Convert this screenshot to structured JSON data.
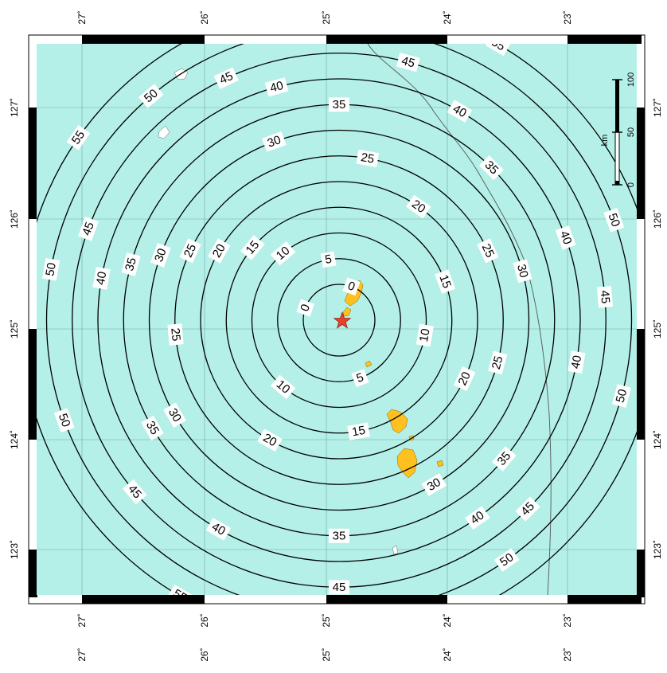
{
  "map": {
    "background_color": "#ffffff",
    "water_color": "#b4f0e8",
    "land_color": "#ffc020",
    "other_land_color": "#ffffff",
    "epicenter_color": "#e8402a",
    "epicenter_icon": "star-icon",
    "contour_values": [
      0,
      5,
      10,
      15,
      20,
      25,
      30,
      35,
      40,
      45,
      50,
      55
    ],
    "contour_labels": {
      "0": [
        "0",
        "0"
      ],
      "5": [
        "5",
        "5"
      ],
      "10": [
        "10",
        "10",
        "10"
      ],
      "15": [
        "15",
        "15",
        "15"
      ],
      "20": [
        "20",
        "20",
        "20",
        "20"
      ],
      "25": [
        "25",
        "25",
        "25",
        "25",
        "25"
      ],
      "30": [
        "30",
        "30",
        "30",
        "30",
        "30"
      ],
      "35": [
        "35",
        "35",
        "35",
        "35",
        "35",
        "35"
      ],
      "40": [
        "40",
        "40",
        "40",
        "40",
        "40",
        "40",
        "40"
      ],
      "45": [
        "45",
        "45",
        "45",
        "45",
        "45",
        "45",
        "45"
      ],
      "50": [
        "50",
        "50",
        "50",
        "50",
        "50",
        "50",
        "50"
      ],
      "55": [
        "55",
        "55",
        "55",
        "55"
      ]
    },
    "top_tick_labels": [
      "27˚",
      "26˚",
      "25˚",
      "24˚",
      "23˚"
    ],
    "bottom_tick_labels": [
      "27˚",
      "26˚",
      "25˚",
      "24˚",
      "23˚"
    ],
    "extra_bottom_tick_labels": [
      "27˚",
      "26˚",
      "25˚",
      "24˚",
      "23˚"
    ],
    "left_tick_labels": [
      "127˚",
      "126˚",
      "125˚",
      "124˚",
      "123˚"
    ],
    "right_tick_labels": [
      "127˚",
      "126˚",
      "125˚",
      "124˚",
      "123˚"
    ],
    "scale_bar": {
      "unit": "km",
      "labels": [
        "0",
        "50",
        "100"
      ]
    }
  }
}
